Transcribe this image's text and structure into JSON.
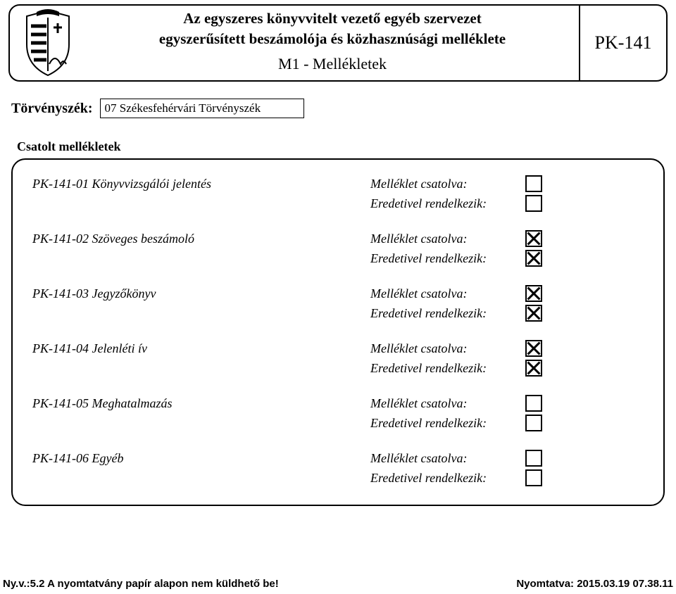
{
  "header": {
    "title_line1": "Az egyszeres könyvvitelt vezető egyéb szervezet",
    "title_line2": "egyszerűsített beszámolója és közhasznúsági melléklete",
    "subtitle": "M1 - Mellékletek",
    "code": "PK-141"
  },
  "court": {
    "label": "Törvényszék:",
    "value": "07 Székesfehérvári Törvényszék"
  },
  "attachments": {
    "section_title": "Csatolt mellékletek",
    "label_attached": "Melléklet csatolva:",
    "label_original": "Eredetivel rendelkezik:",
    "items": [
      {
        "name": "PK-141-01 Könyvvizsgálói jelentés",
        "attached": false,
        "original": false
      },
      {
        "name": "PK-141-02 Szöveges beszámoló",
        "attached": true,
        "original": true
      },
      {
        "name": "PK-141-03 Jegyzőkönyv",
        "attached": true,
        "original": true
      },
      {
        "name": "PK-141-04 Jelenléti ív",
        "attached": true,
        "original": true
      },
      {
        "name": "PK-141-05 Meghatalmazás",
        "attached": false,
        "original": false
      },
      {
        "name": "PK-141-06 Egyéb",
        "attached": false,
        "original": false
      }
    ]
  },
  "footer": {
    "left": "Ny.v.:5.2 A nyomtatvány papír alapon nem küldhető be!",
    "right": "Nyomtatva: 2015.03.19 07.38.11"
  },
  "colors": {
    "background": "#ffffff",
    "text": "#000000",
    "border": "#000000"
  }
}
